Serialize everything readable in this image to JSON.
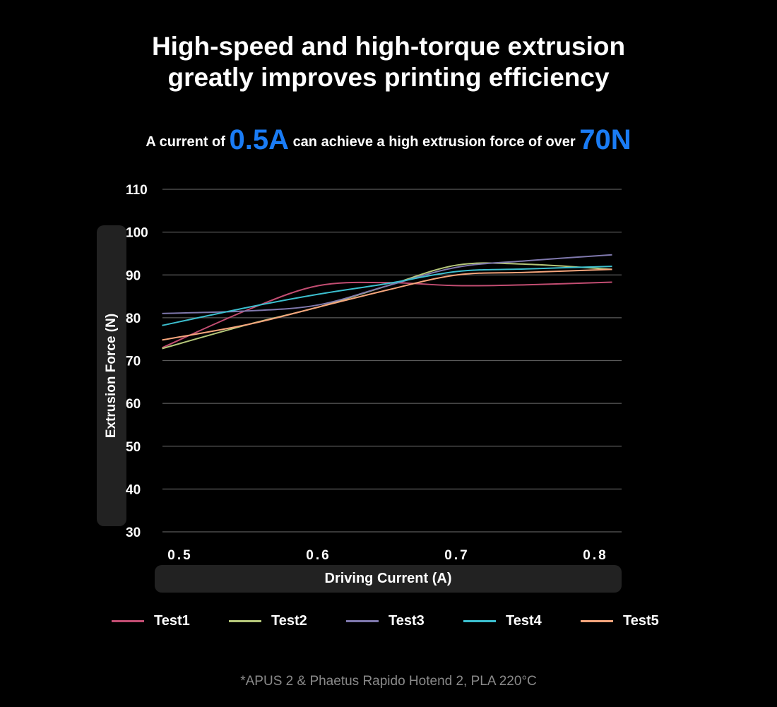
{
  "title_lines": [
    "High-speed and high-torque extrusion",
    "greatly improves printing efficiency"
  ],
  "subtitle": {
    "pre": "A current of",
    "v1": "0.5A",
    "mid": "can achieve a high extrusion force of over",
    "v2": "70N"
  },
  "footnote": "*APUS 2 & Phaetus Rapido Hotend 2, PLA 220°C",
  "chart_data": {
    "type": "line",
    "xlabel": "Driving Current (A)",
    "ylabel": "Extrusion Force (N)",
    "ylim": [
      30,
      110
    ],
    "yticks": [
      "110",
      "100",
      "90",
      "80",
      "70",
      "60",
      "50",
      "40",
      "30"
    ],
    "xlim": [
      0.487,
      0.812
    ],
    "xticks": [
      "0.5",
      "0.6",
      "0.7",
      "0.8"
    ],
    "grid": true,
    "legend": "bottom",
    "x": [
      0.487,
      0.55,
      0.6,
      0.65,
      0.7,
      0.75,
      0.812
    ],
    "series": [
      {
        "name": "Test1",
        "color": "#c24d72",
        "values": [
          73,
          82,
          87.5,
          88.2,
          87.5,
          87.7,
          88.3
        ]
      },
      {
        "name": "Test2",
        "color": "#b5c77a",
        "values": [
          72.8,
          78.5,
          82.5,
          87.5,
          92.3,
          92.5,
          91.3
        ]
      },
      {
        "name": "Test3",
        "color": "#7f78ad",
        "values": [
          81,
          81.6,
          83,
          87.5,
          91.8,
          93.3,
          94.7
        ]
      },
      {
        "name": "Test4",
        "color": "#3cbfcf",
        "values": [
          78.2,
          82.5,
          85.5,
          88,
          90.8,
          91.4,
          92
        ]
      },
      {
        "name": "Test5",
        "color": "#f5a57c",
        "values": [
          74.8,
          78.5,
          82.5,
          86.5,
          90,
          90.6,
          91.3
        ]
      }
    ]
  }
}
